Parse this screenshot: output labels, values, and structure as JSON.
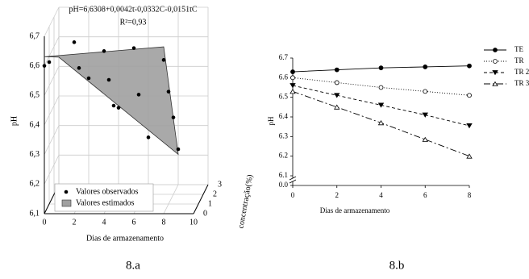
{
  "chart_data": [
    {
      "type": "scatter3d",
      "title": "pH=6,6308+0,0042t-0,0332C-0,0151tC",
      "subtitle": "R²=0,93",
      "caption": "8.a",
      "xlabel": "Dias de armazenamento",
      "ylabel": "pH",
      "zlabel": "concentração(%)",
      "xlim": [
        0,
        10
      ],
      "xticks": [
        0,
        2,
        4,
        6,
        8,
        10
      ],
      "ylim": [
        6.1,
        6.7
      ],
      "yticks": [
        {
          "value": 6.1,
          "label": "6,1"
        },
        {
          "value": 6.2,
          "label": "6,2"
        },
        {
          "value": 6.3,
          "label": "6,3"
        },
        {
          "value": 6.4,
          "label": "6,4"
        },
        {
          "value": 6.5,
          "label": "6,5"
        },
        {
          "value": 6.6,
          "label": "6,6"
        },
        {
          "value": 6.7,
          "label": "6,7"
        }
      ],
      "zlim": [
        0,
        3
      ],
      "zticks": [
        0,
        1,
        2,
        3
      ],
      "series": [
        {
          "name": "Valores observados",
          "color": "#000000",
          "x": [
            0,
            0,
            2,
            2,
            2,
            4,
            4,
            4,
            4,
            6,
            6,
            6,
            8,
            8,
            8,
            8
          ],
          "z": [
            0,
            1,
            0,
            1,
            3,
            0,
            1,
            2,
            3,
            0,
            1,
            3,
            0,
            1,
            2,
            3
          ],
          "values": [
            6.6,
            6.58,
            6.68,
            6.56,
            6.46,
            6.65,
            6.52,
            6.4,
            6.36,
            6.66,
            6.47,
            6.26,
            6.62,
            6.48,
            6.36,
            6.22
          ]
        },
        {
          "name": "Valores estimados",
          "color": "#a0a0a0",
          "x": [
            0,
            8,
            8,
            0
          ],
          "z": [
            0,
            0,
            3,
            3
          ],
          "values": [
            6.6308,
            6.6644,
            6.2024,
            6.5312
          ]
        }
      ]
    },
    {
      "type": "line",
      "caption": "8.b",
      "xlabel": "Dias de armazenamento",
      "ylabel": "pH",
      "x": [
        0,
        2,
        4,
        6,
        8
      ],
      "xlim": [
        0,
        8
      ],
      "xticks": [
        0,
        2,
        4,
        6,
        8
      ],
      "ylim": [
        6.1,
        6.7
      ],
      "yticks": [
        {
          "value": 0,
          "label": "0.0"
        },
        6.1,
        6.2,
        6.3,
        6.4,
        6.5,
        6.6,
        6.7
      ],
      "axis_break": true,
      "series": [
        {
          "name": "TE",
          "color": "#000000",
          "marker": "circle",
          "filled": true,
          "dash": "none",
          "values": [
            6.63,
            6.64,
            6.65,
            6.655,
            6.66
          ]
        },
        {
          "name": "TR",
          "color": "#000000",
          "marker": "circle",
          "filled": false,
          "dash": "1,2",
          "values": [
            6.6,
            6.575,
            6.55,
            6.53,
            6.51
          ]
        },
        {
          "name": "TR 2",
          "color": "#000000",
          "marker": "triangle-down",
          "filled": true,
          "dash": "4,3",
          "values": [
            6.56,
            6.51,
            6.46,
            6.41,
            6.355
          ]
        },
        {
          "name": "TR 3",
          "color": "#000000",
          "marker": "triangle-up",
          "filled": false,
          "dash": "8,3,2,3",
          "values": [
            6.53,
            6.45,
            6.37,
            6.285,
            6.2
          ]
        }
      ]
    }
  ]
}
